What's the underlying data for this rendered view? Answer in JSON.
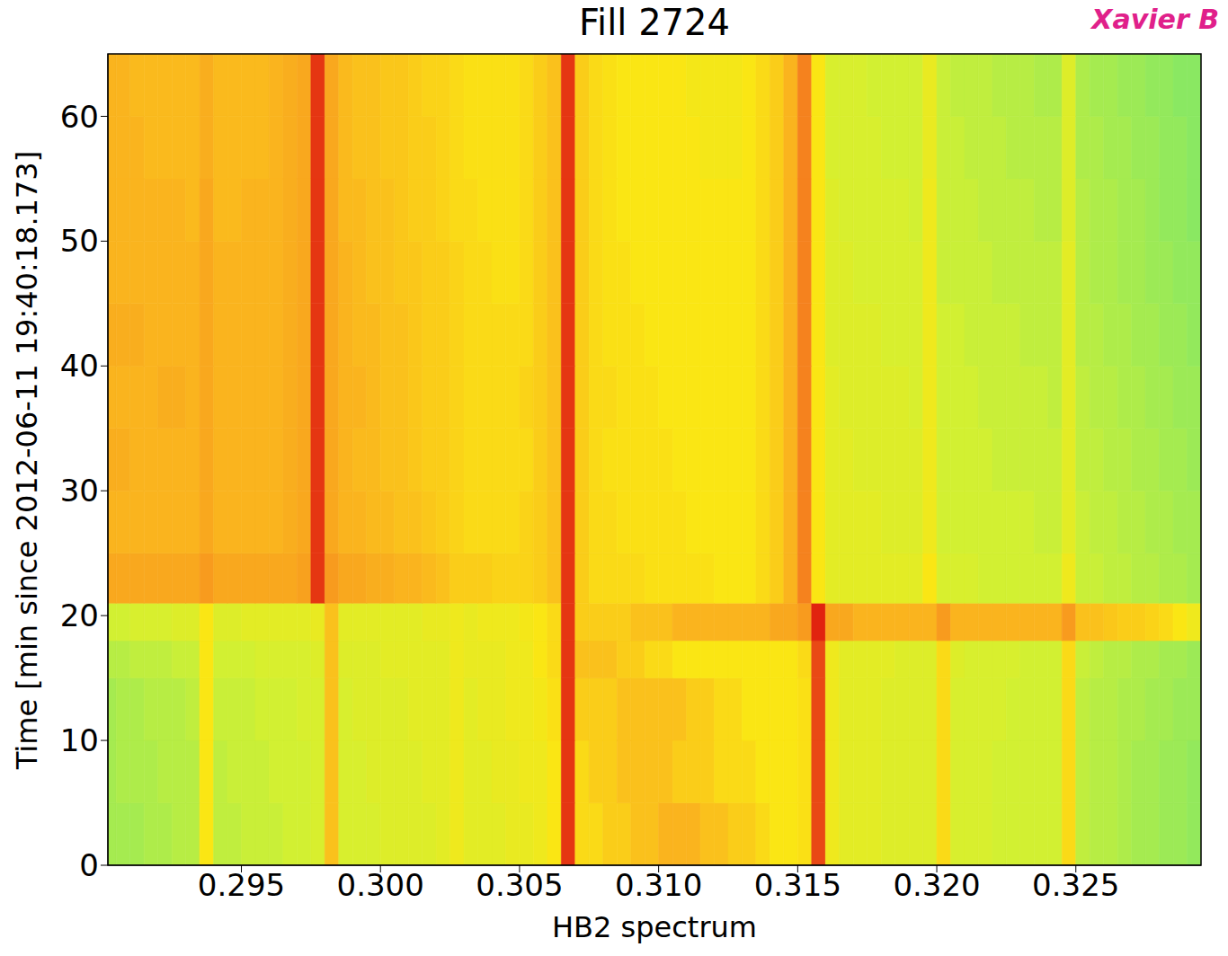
{
  "chart_data": {
    "type": "heatmap",
    "title": "Fill 2724",
    "annotation": "Xavier B",
    "x_label": "HB2 spectrum",
    "y_label": "Time [min since 2012-06-11 19:40:18.173]",
    "xlim": [
      0.2902,
      0.3295
    ],
    "ylim": [
      0,
      65
    ],
    "xticks": [
      0.295,
      {
        "value": 0.3,
        "label": "0.300"
      },
      0.305,
      {
        "value": 0.31,
        "label": "0.310"
      },
      0.315,
      {
        "value": 0.32,
        "label": "0.320"
      },
      0.325
    ],
    "yticks": [
      0,
      10,
      20,
      30,
      40,
      50,
      60
    ],
    "x_edges": [
      0.29,
      0.2905,
      0.291,
      0.2915,
      0.292,
      0.2925,
      0.293,
      0.2935,
      0.294,
      0.2945,
      0.295,
      0.2955,
      0.296,
      0.2965,
      0.297,
      0.2975,
      0.298,
      0.2985,
      0.299,
      0.2995,
      0.3,
      0.3005,
      0.301,
      0.3015,
      0.302,
      0.3025,
      0.303,
      0.3035,
      0.304,
      0.3045,
      0.305,
      0.3055,
      0.306,
      0.3065,
      0.307,
      0.3075,
      0.308,
      0.3085,
      0.309,
      0.3095,
      0.31,
      0.3105,
      0.311,
      0.3115,
      0.312,
      0.3125,
      0.313,
      0.3135,
      0.314,
      0.3145,
      0.315,
      0.3155,
      0.316,
      0.3165,
      0.317,
      0.3175,
      0.318,
      0.3185,
      0.319,
      0.3195,
      0.32,
      0.3205,
      0.321,
      0.3215,
      0.322,
      0.3225,
      0.323,
      0.3235,
      0.324,
      0.3245,
      0.325,
      0.3255,
      0.326,
      0.3265,
      0.327,
      0.3275,
      0.328,
      0.3285,
      0.329,
      0.3295,
      0.33
    ],
    "y_edges": [
      0,
      5,
      10,
      15,
      18,
      21,
      25,
      30,
      35,
      40,
      45,
      50,
      55,
      60,
      65
    ],
    "cells": [
      [
        50,
        50,
        50,
        51,
        51,
        52,
        52,
        62,
        53,
        53,
        54,
        54,
        54,
        55,
        55,
        56,
        68,
        56,
        56,
        56,
        57,
        57,
        57,
        57,
        58,
        60,
        58,
        58,
        58,
        59,
        59,
        60,
        62,
        86,
        64,
        64,
        66,
        66,
        68,
        68,
        70,
        70,
        70,
        68,
        68,
        66,
        66,
        64,
        62,
        62,
        63,
        84,
        60,
        58,
        58,
        58,
        57,
        57,
        57,
        57,
        64,
        56,
        56,
        56,
        55,
        55,
        55,
        55,
        55,
        64,
        53,
        52,
        52,
        51,
        50,
        50,
        49,
        49,
        48,
        48
      ],
      [
        50,
        51,
        51,
        51,
        52,
        52,
        52,
        62,
        53,
        54,
        54,
        54,
        55,
        55,
        55,
        56,
        68,
        56,
        56,
        57,
        57,
        57,
        57,
        58,
        58,
        60,
        58,
        58,
        59,
        59,
        60,
        60,
        62,
        86,
        64,
        66,
        66,
        68,
        68,
        68,
        68,
        66,
        66,
        66,
        64,
        64,
        64,
        62,
        62,
        62,
        63,
        84,
        60,
        58,
        58,
        58,
        57,
        57,
        57,
        57,
        64,
        56,
        56,
        56,
        55,
        55,
        55,
        55,
        55,
        64,
        53,
        52,
        52,
        51,
        50,
        50,
        49,
        49,
        48,
        48
      ],
      [
        50,
        51,
        51,
        52,
        52,
        52,
        53,
        62,
        54,
        54,
        54,
        55,
        55,
        55,
        56,
        56,
        68,
        56,
        57,
        57,
        57,
        57,
        58,
        58,
        58,
        60,
        58,
        59,
        59,
        60,
        60,
        61,
        63,
        86,
        66,
        66,
        66,
        68,
        68,
        68,
        68,
        68,
        66,
        66,
        64,
        64,
        62,
        62,
        62,
        62,
        63,
        84,
        60,
        58,
        58,
        58,
        57,
        57,
        57,
        57,
        64,
        56,
        56,
        56,
        56,
        55,
        55,
        55,
        55,
        64,
        53,
        52,
        52,
        51,
        51,
        50,
        50,
        49,
        49,
        48
      ],
      [
        52,
        52,
        53,
        53,
        53,
        54,
        54,
        62,
        55,
        55,
        55,
        56,
        56,
        56,
        56,
        57,
        68,
        57,
        57,
        57,
        58,
        58,
        58,
        58,
        58,
        60,
        59,
        59,
        59,
        60,
        60,
        62,
        64,
        86,
        68,
        68,
        68,
        66,
        66,
        64,
        64,
        62,
        62,
        62,
        62,
        62,
        62,
        62,
        62,
        62,
        64,
        84,
        60,
        58,
        58,
        58,
        58,
        57,
        57,
        57,
        64,
        57,
        56,
        56,
        56,
        56,
        55,
        55,
        55,
        64,
        54,
        53,
        52,
        52,
        51,
        51,
        50,
        50,
        49,
        49
      ],
      [
        55,
        55,
        56,
        56,
        56,
        57,
        57,
        62,
        57,
        57,
        58,
        58,
        58,
        58,
        58,
        59,
        68,
        58,
        58,
        58,
        58,
        58,
        58,
        59,
        59,
        60,
        59,
        60,
        60,
        60,
        61,
        62,
        64,
        86,
        66,
        66,
        66,
        66,
        68,
        68,
        68,
        70,
        70,
        70,
        70,
        70,
        70,
        70,
        72,
        72,
        74,
        88,
        72,
        72,
        70,
        70,
        70,
        70,
        70,
        70,
        74,
        70,
        70,
        70,
        70,
        70,
        70,
        70,
        70,
        74,
        68,
        68,
        67,
        66,
        66,
        65,
        64,
        62,
        60,
        58
      ],
      [
        72,
        72,
        72,
        72,
        72,
        72,
        72,
        74,
        72,
        72,
        72,
        72,
        72,
        72,
        73,
        86,
        74,
        72,
        72,
        71,
        71,
        70,
        70,
        69,
        68,
        66,
        66,
        66,
        65,
        65,
        65,
        66,
        68,
        86,
        66,
        64,
        64,
        64,
        64,
        63,
        63,
        63,
        63,
        63,
        62,
        62,
        62,
        64,
        66,
        70,
        78,
        62,
        58,
        58,
        58,
        58,
        58,
        58,
        58,
        62,
        56,
        56,
        56,
        55,
        55,
        55,
        55,
        55,
        55,
        60,
        54,
        54,
        53,
        53,
        52,
        52,
        51,
        51,
        50,
        50
      ],
      [
        70,
        70,
        70,
        70,
        70,
        70,
        70,
        72,
        70,
        70,
        70,
        70,
        70,
        71,
        72,
        86,
        72,
        70,
        70,
        69,
        69,
        68,
        68,
        67,
        66,
        65,
        64,
        64,
        64,
        64,
        65,
        66,
        68,
        86,
        66,
        64,
        64,
        63,
        63,
        63,
        63,
        63,
        62,
        62,
        62,
        62,
        62,
        64,
        66,
        70,
        78,
        62,
        58,
        58,
        58,
        58,
        57,
        57,
        57,
        60,
        55,
        55,
        55,
        55,
        55,
        55,
        55,
        54,
        54,
        58,
        54,
        53,
        53,
        52,
        52,
        51,
        51,
        50,
        50,
        49
      ],
      [
        71,
        71,
        70,
        70,
        70,
        70,
        70,
        72,
        70,
        70,
        70,
        70,
        70,
        71,
        72,
        86,
        72,
        70,
        69,
        69,
        68,
        68,
        67,
        66,
        66,
        65,
        64,
        64,
        64,
        64,
        64,
        66,
        68,
        86,
        66,
        64,
        63,
        63,
        63,
        63,
        63,
        62,
        62,
        62,
        62,
        62,
        62,
        64,
        66,
        70,
        78,
        62,
        58,
        58,
        57,
        57,
        57,
        57,
        57,
        60,
        55,
        55,
        55,
        55,
        54,
        54,
        54,
        54,
        54,
        58,
        53,
        53,
        52,
        52,
        51,
        51,
        50,
        50,
        49,
        49
      ],
      [
        70,
        70,
        70,
        70,
        71,
        71,
        70,
        72,
        70,
        70,
        70,
        70,
        70,
        71,
        72,
        86,
        72,
        70,
        70,
        69,
        68,
        68,
        67,
        66,
        66,
        65,
        64,
        64,
        64,
        64,
        65,
        66,
        68,
        86,
        66,
        64,
        64,
        63,
        63,
        63,
        62,
        62,
        62,
        62,
        62,
        62,
        62,
        64,
        66,
        70,
        78,
        62,
        58,
        57,
        57,
        57,
        57,
        57,
        56,
        60,
        55,
        55,
        55,
        54,
        54,
        54,
        54,
        54,
        53,
        58,
        53,
        52,
        52,
        51,
        51,
        50,
        50,
        49,
        49,
        48
      ],
      [
        71,
        71,
        71,
        70,
        70,
        70,
        70,
        72,
        70,
        70,
        70,
        70,
        70,
        71,
        72,
        86,
        72,
        70,
        69,
        69,
        68,
        68,
        67,
        66,
        66,
        65,
        64,
        64,
        64,
        64,
        64,
        66,
        68,
        86,
        66,
        64,
        63,
        63,
        63,
        62,
        62,
        62,
        62,
        62,
        62,
        62,
        62,
        64,
        66,
        70,
        78,
        62,
        57,
        57,
        57,
        57,
        56,
        56,
        56,
        60,
        55,
        55,
        54,
        54,
        54,
        54,
        53,
        53,
        53,
        58,
        52,
        52,
        51,
        51,
        50,
        50,
        49,
        49,
        48,
        48
      ],
      [
        70,
        70,
        70,
        70,
        70,
        70,
        70,
        72,
        70,
        70,
        70,
        70,
        70,
        71,
        72,
        86,
        72,
        70,
        69,
        68,
        68,
        67,
        67,
        66,
        66,
        65,
        64,
        64,
        63,
        63,
        64,
        66,
        68,
        86,
        66,
        64,
        63,
        63,
        62,
        62,
        62,
        62,
        62,
        62,
        62,
        62,
        62,
        64,
        66,
        70,
        78,
        62,
        57,
        57,
        56,
        56,
        56,
        56,
        56,
        60,
        54,
        54,
        54,
        54,
        53,
        53,
        53,
        53,
        53,
        58,
        52,
        51,
        51,
        50,
        50,
        49,
        49,
        48,
        48,
        47
      ],
      [
        70,
        70,
        70,
        70,
        70,
        70,
        69,
        72,
        69,
        69,
        70,
        70,
        70,
        71,
        72,
        86,
        72,
        69,
        69,
        68,
        68,
        67,
        66,
        66,
        65,
        64,
        64,
        63,
        63,
        63,
        64,
        66,
        68,
        86,
        66,
        64,
        63,
        62,
        62,
        62,
        62,
        62,
        62,
        62,
        62,
        62,
        62,
        64,
        66,
        70,
        78,
        62,
        57,
        56,
        56,
        56,
        56,
        56,
        55,
        60,
        54,
        54,
        54,
        53,
        53,
        53,
        53,
        52,
        52,
        57,
        52,
        51,
        51,
        50,
        50,
        49,
        48,
        48,
        47,
        47
      ],
      [
        70,
        70,
        70,
        69,
        69,
        69,
        69,
        71,
        69,
        69,
        69,
        69,
        70,
        71,
        72,
        86,
        72,
        69,
        68,
        68,
        67,
        67,
        66,
        66,
        65,
        64,
        63,
        63,
        63,
        63,
        64,
        66,
        68,
        86,
        66,
        64,
        63,
        62,
        62,
        62,
        62,
        62,
        62,
        61,
        61,
        61,
        62,
        64,
        66,
        70,
        78,
        62,
        56,
        56,
        56,
        56,
        55,
        55,
        55,
        59,
        54,
        54,
        53,
        53,
        53,
        52,
        52,
        52,
        52,
        57,
        51,
        51,
        50,
        50,
        49,
        49,
        48,
        48,
        47,
        47
      ],
      [
        70,
        70,
        69,
        69,
        69,
        69,
        69,
        71,
        69,
        69,
        69,
        69,
        70,
        71,
        72,
        86,
        72,
        69,
        68,
        68,
        67,
        67,
        66,
        65,
        65,
        64,
        63,
        63,
        63,
        63,
        64,
        66,
        68,
        86,
        66,
        64,
        63,
        62,
        62,
        62,
        62,
        62,
        61,
        61,
        61,
        61,
        62,
        64,
        66,
        70,
        78,
        62,
        56,
        56,
        56,
        55,
        55,
        55,
        55,
        59,
        54,
        53,
        53,
        53,
        52,
        52,
        52,
        51,
        51,
        57,
        51,
        50,
        50,
        49,
        49,
        48,
        48,
        47,
        47,
        46
      ]
    ]
  }
}
